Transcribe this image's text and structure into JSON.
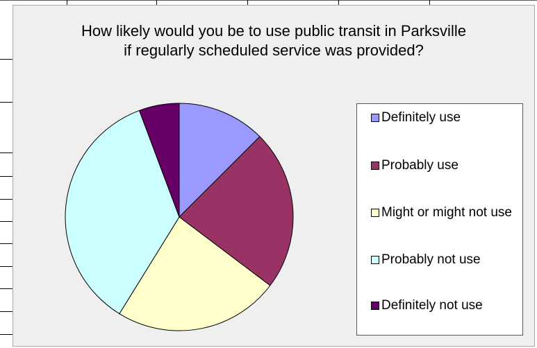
{
  "chart_data": {
    "type": "pie",
    "title": "How likely would you be to use public transit in Parksville if regularly scheduled service was provided?",
    "categories": [
      "Definitely use",
      "Probably use",
      "Might or might not use",
      "Probably not use",
      "Definitely not use"
    ],
    "values": [
      12.5,
      22.8,
      23.5,
      35.5,
      5.7
    ],
    "colors": [
      "#9999ff",
      "#993366",
      "#ffffcc",
      "#ccffff",
      "#660066"
    ],
    "legend": "right"
  }
}
